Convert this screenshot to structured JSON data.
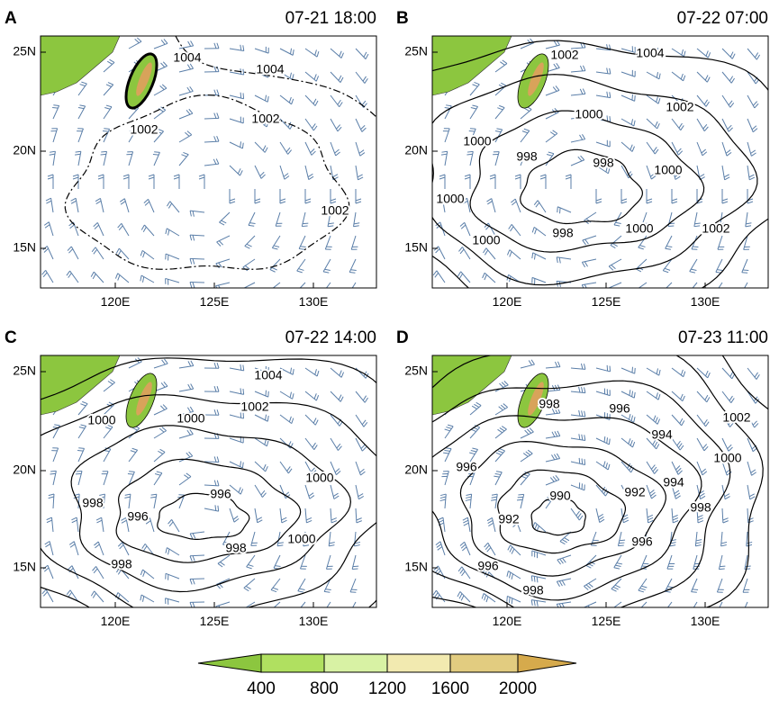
{
  "panels": [
    {
      "letter": "A",
      "time": "07-21 18:00",
      "contour_labels": [
        1004,
        1004,
        1002,
        1002,
        1002
      ]
    },
    {
      "letter": "B",
      "time": "07-22 07:00",
      "contour_labels": [
        1002,
        1004,
        1000,
        1002,
        1000,
        998,
        998,
        1000,
        1000,
        998,
        1000,
        1002,
        1000
      ]
    },
    {
      "letter": "C",
      "time": "07-22 14:00",
      "contour_labels": [
        1004,
        1002,
        1000,
        1000,
        1000,
        998,
        996,
        996,
        998,
        1000,
        998
      ]
    },
    {
      "letter": "D",
      "time": "07-23 11:00",
      "contour_labels": [
        998,
        996,
        994,
        1002,
        1000,
        996,
        994,
        990,
        992,
        998,
        992,
        996,
        996,
        998
      ]
    }
  ],
  "axes": {
    "lat_labels": [
      "25N",
      "20N",
      "15N"
    ],
    "lon_labels": [
      "120E",
      "125E",
      "130E"
    ]
  },
  "colorbar": {
    "labels": [
      400,
      800,
      1200,
      1600,
      2000
    ]
  }
}
